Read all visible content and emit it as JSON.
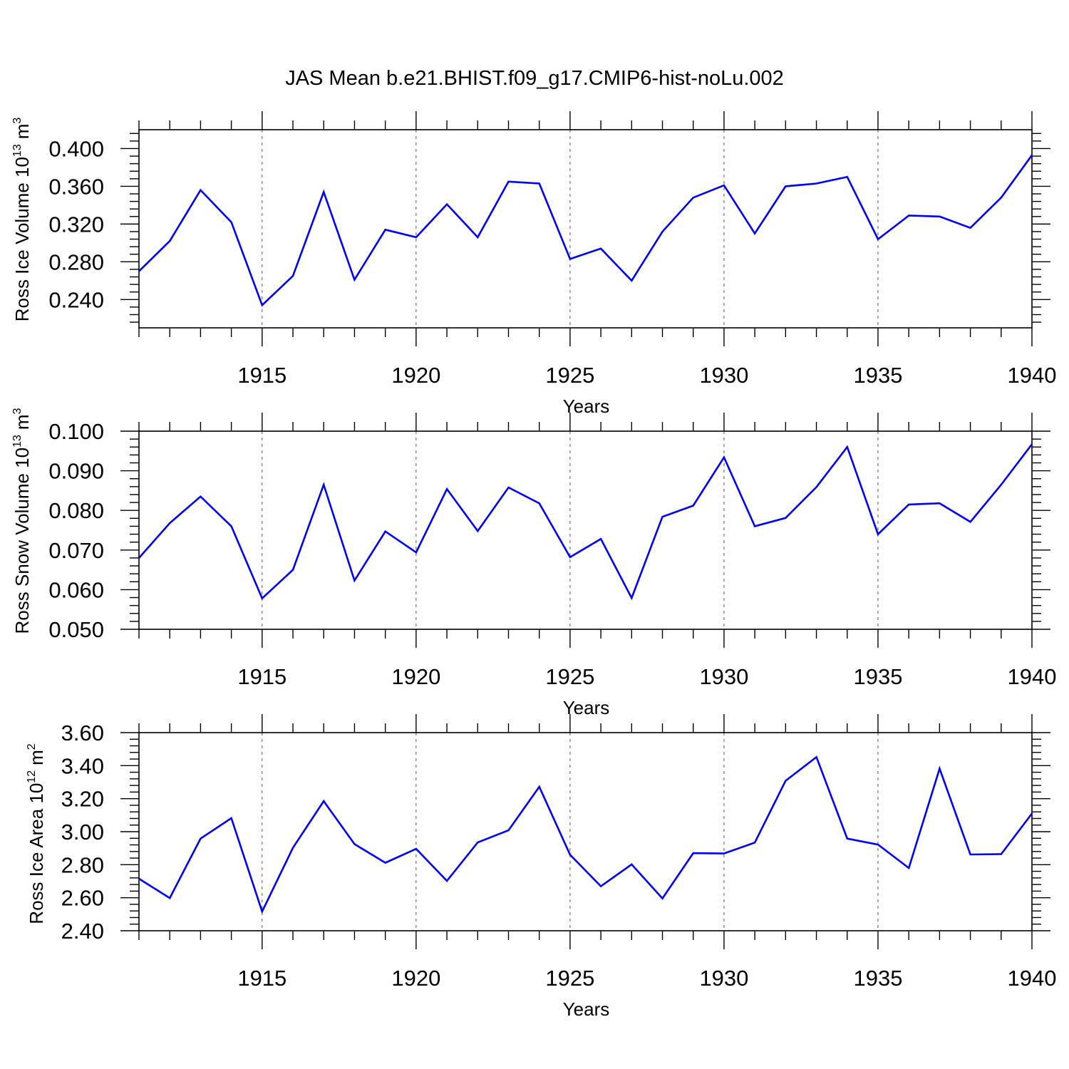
{
  "title": "JAS Mean b.e21.BHIST.f09_g17.CMIP6-hist-noLu.002",
  "colors": {
    "line": "#0000ff",
    "axis": "#000000",
    "grid": "#555555"
  },
  "chart_data": [
    {
      "type": "line",
      "xlabel": "Years",
      "ylabel_text": "Ross Ice Volume 10",
      "ylabel_exponent": "13",
      "ylabel_unit": "m",
      "ylabel_unit_exponent": "3",
      "xlim": [
        1911,
        1940
      ],
      "ylim": [
        0.21,
        0.42
      ],
      "xticks": [
        1915,
        1920,
        1925,
        1930,
        1935,
        1940
      ],
      "xtick_labels": [
        "1915",
        "1920",
        "1925",
        "1930",
        "1935",
        "1940"
      ],
      "yticks": [
        0.24,
        0.28,
        0.32,
        0.36,
        0.4
      ],
      "ytick_labels": [
        "0.240",
        "0.280",
        "0.320",
        "0.360",
        "0.400"
      ],
      "x": [
        1911,
        1912,
        1913,
        1914,
        1915,
        1916,
        1917,
        1918,
        1919,
        1920,
        1921,
        1922,
        1923,
        1924,
        1925,
        1926,
        1927,
        1928,
        1929,
        1930,
        1931,
        1932,
        1933,
        1934,
        1935,
        1936,
        1937,
        1938,
        1939,
        1940
      ],
      "y": [
        0.27,
        0.302,
        0.356,
        0.322,
        0.234,
        0.265,
        0.354,
        0.261,
        0.314,
        0.306,
        0.341,
        0.306,
        0.365,
        0.363,
        0.283,
        0.294,
        0.26,
        0.312,
        0.348,
        0.361,
        0.31,
        0.36,
        0.363,
        0.37,
        0.304,
        0.329,
        0.328,
        0.316,
        0.348,
        0.393
      ],
      "grid": "vertical dashed at major x ticks"
    },
    {
      "type": "line",
      "xlabel": "Years",
      "ylabel_text": "Ross Snow Volume 10",
      "ylabel_exponent": "13",
      "ylabel_unit": "m",
      "ylabel_unit_exponent": "3",
      "xlim": [
        1911,
        1940
      ],
      "ylim": [
        0.05,
        0.1
      ],
      "xticks": [
        1915,
        1920,
        1925,
        1930,
        1935,
        1940
      ],
      "xtick_labels": [
        "1915",
        "1920",
        "1925",
        "1930",
        "1935",
        "1940"
      ],
      "yticks": [
        0.05,
        0.06,
        0.07,
        0.08,
        0.09,
        0.1
      ],
      "ytick_labels": [
        "0.050",
        "0.060",
        "0.070",
        "0.080",
        "0.090",
        "0.100"
      ],
      "x": [
        1911,
        1912,
        1913,
        1914,
        1915,
        1916,
        1917,
        1918,
        1919,
        1920,
        1921,
        1922,
        1923,
        1924,
        1925,
        1926,
        1927,
        1928,
        1929,
        1930,
        1931,
        1932,
        1933,
        1934,
        1935,
        1936,
        1937,
        1938,
        1939,
        1940
      ],
      "y": [
        0.068,
        0.0768,
        0.0835,
        0.076,
        0.0578,
        0.065,
        0.0865,
        0.0623,
        0.0747,
        0.0694,
        0.0854,
        0.0748,
        0.0858,
        0.0818,
        0.0682,
        0.0728,
        0.0579,
        0.0784,
        0.0812,
        0.0934,
        0.076,
        0.0781,
        0.0859,
        0.096,
        0.074,
        0.0815,
        0.0818,
        0.0771,
        0.0865,
        0.0967
      ],
      "grid": "vertical dashed at major x ticks"
    },
    {
      "type": "line",
      "xlabel": "Years",
      "ylabel_text": "Ross Ice Area 10",
      "ylabel_exponent": "12",
      "ylabel_unit": "m",
      "ylabel_unit_exponent": "2",
      "xlim": [
        1911,
        1940
      ],
      "ylim": [
        2.4,
        3.6
      ],
      "xticks": [
        1915,
        1920,
        1925,
        1930,
        1935,
        1940
      ],
      "xtick_labels": [
        "1915",
        "1920",
        "1925",
        "1930",
        "1935",
        "1940"
      ],
      "yticks": [
        2.4,
        2.6,
        2.8,
        3.0,
        3.2,
        3.4,
        3.6
      ],
      "ytick_labels": [
        "2.40",
        "2.60",
        "2.80",
        "3.00",
        "3.20",
        "3.40",
        "3.60"
      ],
      "x": [
        1911,
        1912,
        1913,
        1914,
        1915,
        1916,
        1917,
        1918,
        1919,
        1920,
        1921,
        1922,
        1923,
        1924,
        1925,
        1926,
        1927,
        1928,
        1929,
        1930,
        1931,
        1932,
        1933,
        1934,
        1935,
        1936,
        1937,
        1938,
        1939,
        1940
      ],
      "y": [
        2.715,
        2.598,
        2.958,
        3.082,
        2.516,
        2.902,
        3.185,
        2.925,
        2.812,
        2.896,
        2.702,
        2.935,
        3.008,
        3.272,
        2.86,
        2.67,
        2.802,
        2.596,
        2.87,
        2.868,
        2.934,
        3.308,
        3.452,
        2.958,
        2.922,
        2.78,
        3.382,
        2.862,
        2.864,
        3.11
      ],
      "grid": "vertical dashed at major x ticks"
    }
  ]
}
